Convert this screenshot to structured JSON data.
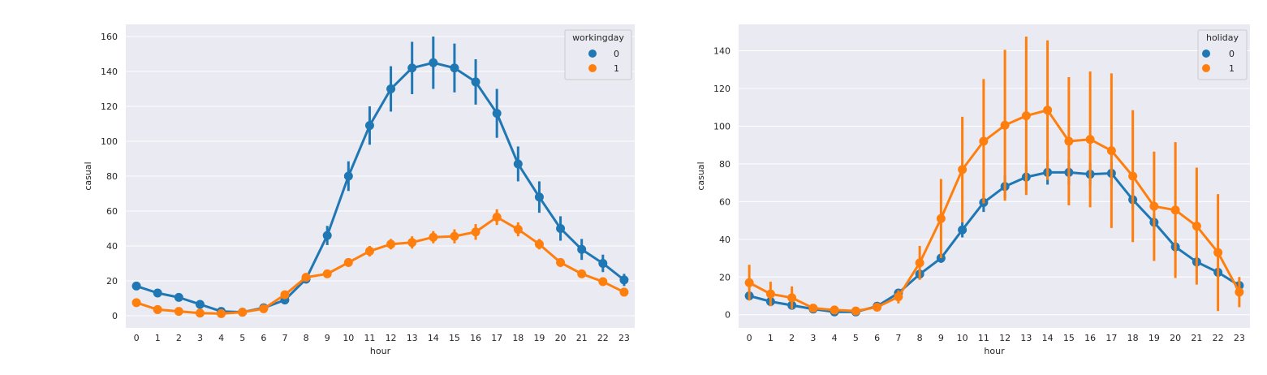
{
  "chart_data": [
    {
      "type": "line",
      "subtype": "pointplot",
      "x": [
        0,
        1,
        2,
        3,
        4,
        5,
        6,
        7,
        8,
        9,
        10,
        11,
        12,
        13,
        14,
        15,
        16,
        17,
        18,
        19,
        20,
        21,
        22,
        23
      ],
      "xlabel": "hour",
      "ylabel": "casual",
      "ylim": [
        -7,
        167
      ],
      "yticks": [
        0,
        20,
        40,
        60,
        80,
        100,
        120,
        140,
        160
      ],
      "grid": true,
      "legend": {
        "title": "workingday",
        "placement": "top-right"
      },
      "series": [
        {
          "name": "0",
          "color": "#1f77b4",
          "values": [
            17,
            13,
            10.5,
            6.5,
            2.5,
            2,
            4.5,
            9,
            21,
            46,
            80,
            109,
            130,
            142,
            145,
            142,
            134,
            116,
            87,
            68,
            50,
            38,
            30,
            20.5
          ],
          "error": [
            2,
            1.5,
            1.5,
            1.2,
            0.8,
            0.7,
            1,
            1.5,
            2.5,
            5.5,
            8.5,
            11,
            13,
            15,
            15,
            14,
            13,
            14,
            10,
            9,
            7,
            6,
            5,
            3.5
          ]
        },
        {
          "name": "1",
          "color": "#ff7f0e",
          "values": [
            7.5,
            3.5,
            2.5,
            1.5,
            1.2,
            2,
            4,
            12,
            22,
            24,
            30.5,
            37,
            41,
            42,
            45,
            45.5,
            48,
            56.5,
            49.5,
            41,
            30.5,
            24,
            19.5,
            13.5
          ],
          "error": [
            0.8,
            0.4,
            0.3,
            0.3,
            0.2,
            0.3,
            0.4,
            1,
            1.5,
            1.8,
            2.5,
            3,
            3,
            3.5,
            3.5,
            4,
            4.5,
            4.5,
            4,
            3,
            2.5,
            2,
            1.5,
            1.2
          ]
        }
      ]
    },
    {
      "type": "line",
      "subtype": "pointplot",
      "x": [
        0,
        1,
        2,
        3,
        4,
        5,
        6,
        7,
        8,
        9,
        10,
        11,
        12,
        13,
        14,
        15,
        16,
        17,
        18,
        19,
        20,
        21,
        22,
        23
      ],
      "xlabel": "hour",
      "ylabel": "casual",
      "ylim": [
        -7,
        154
      ],
      "yticks": [
        0,
        20,
        40,
        60,
        80,
        100,
        120,
        140
      ],
      "grid": true,
      "legend": {
        "title": "holiday",
        "placement": "top-right"
      },
      "series": [
        {
          "name": "0",
          "color": "#1f77b4",
          "values": [
            10,
            7,
            5,
            3,
            1.5,
            1.5,
            4.5,
            11.5,
            21.5,
            30,
            45,
            59.5,
            68,
            73,
            75.5,
            75.5,
            74.5,
            75,
            61,
            49,
            36,
            28,
            22.5,
            15.5
          ],
          "error": [
            1.2,
            0.8,
            0.6,
            0.5,
            0.3,
            0.3,
            0.5,
            1,
            1.5,
            2.5,
            4,
            5,
            6,
            6.5,
            6.5,
            6.5,
            6,
            6,
            5.5,
            4.5,
            3.5,
            3,
            2.5,
            2
          ]
        },
        {
          "name": "1",
          "color": "#ff7f0e",
          "values": [
            17,
            11,
            9,
            3.5,
            2.5,
            2,
            4,
            9.5,
            27.5,
            51,
            77,
            92,
            100.5,
            105.5,
            108.5,
            92,
            93,
            87,
            73.5,
            57.5,
            55.5,
            47,
            33,
            12
          ],
          "error": [
            9.5,
            6.5,
            6,
            1.5,
            1,
            0.8,
            1.5,
            3.5,
            9,
            21,
            28,
            33,
            40,
            42,
            37,
            34,
            36,
            41,
            35,
            29,
            36,
            31,
            31,
            8
          ]
        }
      ]
    }
  ]
}
